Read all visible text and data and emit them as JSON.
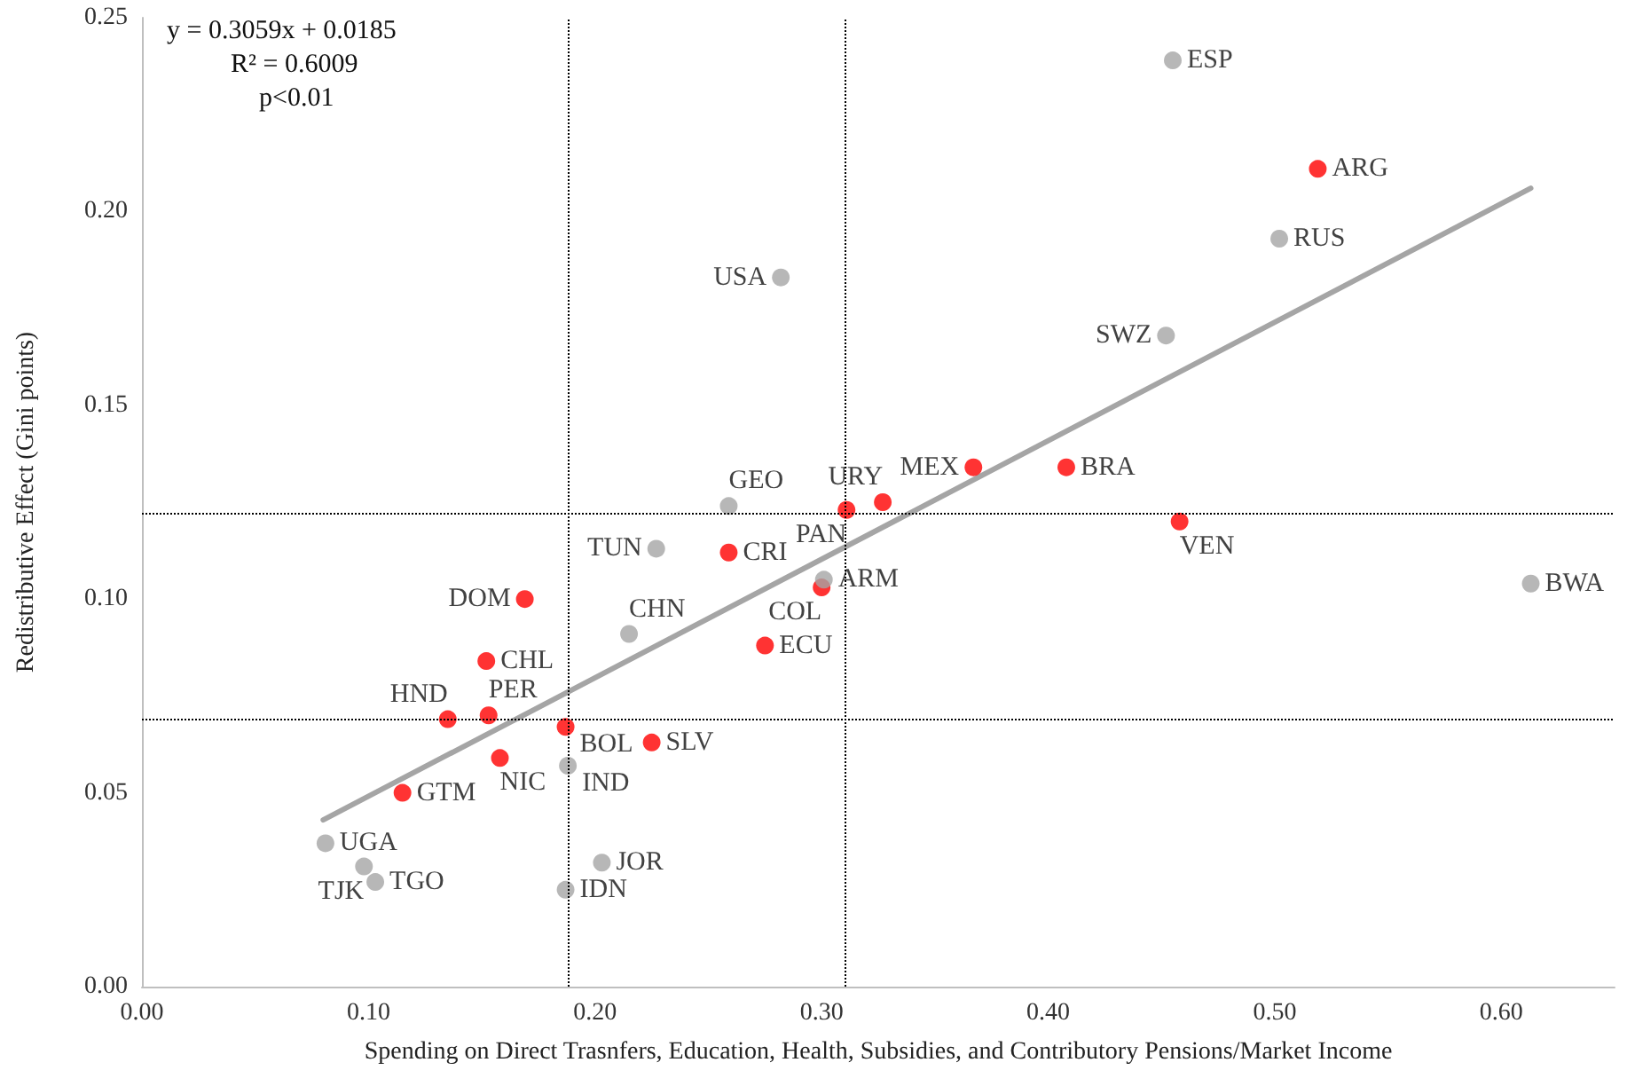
{
  "chart_data": {
    "type": "scatter",
    "xlabel": "Spending on Direct Trasnfers, Education, Health, Subsidies, and Contributory Pensions/Market Income",
    "ylabel": "Redistributive Effect (Gini points)",
    "annotations": [
      "y = 0.3059x + 0.0185",
      "R² = 0.6009",
      "p<0.01"
    ],
    "xlim": [
      0,
      0.65
    ],
    "xticks": [
      {
        "value": 0,
        "label": "0.00"
      },
      {
        "value": 0.1,
        "label": "0.10"
      },
      {
        "value": 0.2,
        "label": "0.20"
      },
      {
        "value": 0.3,
        "label": "0.30"
      },
      {
        "value": 0.4,
        "label": "0.40"
      },
      {
        "value": 0.5,
        "label": "0.50"
      },
      {
        "value": 0.6,
        "label": "0.60"
      }
    ],
    "ylim": [
      0,
      0.25
    ],
    "yticks": [
      {
        "value": 0,
        "label": "0.00"
      },
      {
        "value": 0.05,
        "label": "0.05"
      },
      {
        "value": 0.1,
        "label": "0.10"
      },
      {
        "value": 0.15,
        "label": "0.15"
      },
      {
        "value": 0.2,
        "label": "0.20"
      },
      {
        "value": 0.25,
        "label": "0.25"
      }
    ],
    "grid": false,
    "marker": "circle",
    "ref_lines": [
      {
        "axis": "x",
        "value": 0.188,
        "color": "#000000",
        "line_style": "dotted"
      },
      {
        "axis": "x",
        "value": 0.31,
        "color": "#000000",
        "line_style": "dotted"
      },
      {
        "axis": "y",
        "value": 0.122,
        "color": "#000000",
        "line_style": "dotted"
      },
      {
        "axis": "y",
        "value": 0.069,
        "color": "#000000",
        "line_style": "dotted"
      }
    ],
    "series": [
      {
        "color": "#ff0000",
        "x": [
          0.519,
          0.367,
          0.408,
          0.327,
          0.311,
          0.458,
          0.259,
          0.3,
          0.169,
          0.275,
          0.152,
          0.135,
          0.153,
          0.187,
          0.225,
          0.158,
          0.115
        ],
        "values": [
          0.211,
          0.134,
          0.134,
          0.125,
          0.123,
          0.12,
          0.112,
          0.103,
          0.1,
          0.088,
          0.084,
          0.069,
          0.07,
          0.067,
          0.063,
          0.059,
          0.05
        ],
        "value_labels": [
          "ARG",
          "MEX",
          "BRA",
          "URY",
          "PAN",
          "VEN",
          "CRI",
          "COL",
          "DOM",
          "ECU",
          "CHL",
          "HND",
          "PER",
          "BOL",
          "SLV",
          "NIC",
          "GTM"
        ]
      },
      {
        "color": "#a5a5a5",
        "x": [
          0.455,
          0.502,
          0.282,
          0.452,
          0.613,
          0.259,
          0.301,
          0.227,
          0.215,
          0.188,
          0.081,
          0.098,
          0.103,
          0.203,
          0.187
        ],
        "values": [
          0.239,
          0.193,
          0.183,
          0.168,
          0.104,
          0.124,
          0.105,
          0.113,
          0.091,
          0.057,
          0.037,
          0.031,
          0.027,
          0.032,
          0.025
        ],
        "value_labels": [
          "ESP",
          "RUS",
          "USA",
          "SWZ",
          "BWA",
          "GEO",
          "ARM",
          "TUN",
          "CHN",
          "IND",
          "UGA",
          "TJK",
          "TGO",
          "JOR",
          "IDN"
        ]
      },
      {
        "type": "line",
        "color": "#a5a5a5",
        "marker": "none",
        "x": [
          0.08,
          0.613
        ],
        "values": [
          0.043,
          0.206
        ]
      }
    ]
  }
}
